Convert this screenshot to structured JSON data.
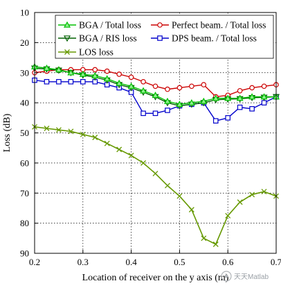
{
  "chart_data": {
    "type": "line",
    "xlabel": "Location of receiver on the y axis (m)",
    "ylabel": "Loss (dB)",
    "xlim": [
      0.2,
      0.7
    ],
    "ylim": [
      10,
      90
    ],
    "y_inverted": true,
    "grid": true,
    "legend_placement": "top",
    "xticks": [
      "0.2",
      "0.3",
      "0.4",
      "0.5",
      "0.6",
      "0.7"
    ],
    "yticks": [
      "10",
      "20",
      "30",
      "40",
      "50",
      "60",
      "70",
      "80",
      "90"
    ],
    "x": [
      0.2,
      0.225,
      0.25,
      0.275,
      0.3,
      0.325,
      0.35,
      0.375,
      0.4,
      0.425,
      0.45,
      0.475,
      0.5,
      0.525,
      0.55,
      0.575,
      0.6,
      0.625,
      0.65,
      0.675,
      0.7
    ],
    "series": [
      {
        "name": "BGA / Total loss",
        "color": "#00c000",
        "marker": "triangle-up",
        "values": [
          28,
          28.5,
          29,
          30,
          30.5,
          31,
          32,
          33.5,
          34.5,
          36,
          37.5,
          39.5,
          40.5,
          40,
          39.5,
          38.5,
          38.5,
          38.5,
          38,
          38,
          38
        ]
      },
      {
        "name": "BGA / RIS loss",
        "color": "#006000",
        "marker": "triangle-down",
        "values": [
          28.5,
          28.8,
          29.2,
          30,
          30.8,
          31.5,
          32.5,
          34,
          35,
          36.5,
          38,
          40,
          41,
          40.5,
          40,
          39,
          38.8,
          38.7,
          38.3,
          38.2,
          38
        ]
      },
      {
        "name": "Perfect beam. / Total loss",
        "color": "#cc0000",
        "marker": "circle",
        "values": [
          30,
          29.5,
          29,
          29,
          29,
          29,
          29.5,
          30.5,
          31.5,
          33,
          34.5,
          35.5,
          35,
          34.5,
          34,
          38,
          37.5,
          36,
          35,
          34.5,
          34
        ]
      },
      {
        "name": "DPS beam. / Total loss",
        "color": "#0000cc",
        "marker": "square",
        "values": [
          32.5,
          33,
          33,
          33,
          33,
          33,
          34,
          35,
          36.5,
          43.5,
          43.5,
          42.5,
          41,
          40.5,
          40,
          46,
          45,
          41.5,
          42,
          40,
          38
        ]
      },
      {
        "name": "LOS loss",
        "color": "#669900",
        "marker": "x",
        "values": [
          48,
          48.5,
          49,
          49.5,
          50.5,
          51.5,
          53.5,
          55.5,
          57.5,
          60,
          63.5,
          67.5,
          71,
          75.5,
          85,
          87,
          77.5,
          73,
          70.5,
          69.5,
          71
        ]
      }
    ],
    "legend_order": [
      "BGA / Total loss",
      "Perfect beam. / Total loss",
      "BGA / RIS loss",
      "DPS beam. / Total loss",
      "LOS loss"
    ],
    "watermark": "天天Matlab"
  }
}
